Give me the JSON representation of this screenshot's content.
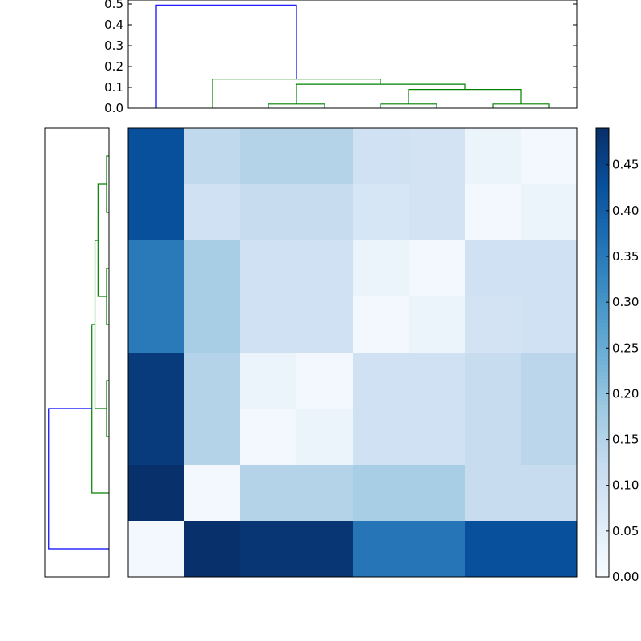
{
  "chart_data": {
    "type": "heatmap",
    "title": "",
    "rows": 8,
    "cols": 8,
    "values": [
      [
        0.43,
        0.13,
        0.15,
        0.15,
        0.1,
        0.09,
        0.03,
        0.01
      ],
      [
        0.43,
        0.1,
        0.12,
        0.12,
        0.08,
        0.09,
        0.01,
        0.03
      ],
      [
        0.35,
        0.17,
        0.1,
        0.1,
        0.03,
        0.01,
        0.1,
        0.1
      ],
      [
        0.35,
        0.17,
        0.1,
        0.1,
        0.01,
        0.03,
        0.09,
        0.1
      ],
      [
        0.47,
        0.15,
        0.03,
        0.01,
        0.1,
        0.1,
        0.12,
        0.14
      ],
      [
        0.47,
        0.15,
        0.01,
        0.03,
        0.1,
        0.1,
        0.12,
        0.14
      ],
      [
        0.49,
        0.01,
        0.15,
        0.15,
        0.17,
        0.17,
        0.12,
        0.12
      ],
      [
        0.01,
        0.49,
        0.48,
        0.48,
        0.36,
        0.36,
        0.43,
        0.43
      ]
    ],
    "colormap": "Blues",
    "color_range": [
      0.0,
      0.49
    ],
    "colorbar": {
      "ticks": [
        0.0,
        0.05,
        0.1,
        0.15,
        0.2,
        0.25,
        0.3,
        0.35,
        0.4,
        0.45
      ],
      "tick_labels": [
        "0.00",
        "0.05",
        "0.10",
        "0.15",
        "0.20",
        "0.25",
        "0.30",
        "0.35",
        "0.40",
        "0.45"
      ]
    },
    "top_dendrogram": {
      "ylim": [
        0.0,
        0.5
      ],
      "yticks": [
        0.0,
        0.1,
        0.2,
        0.3,
        0.4,
        0.5
      ],
      "ytick_labels": [
        "0.0",
        "0.1",
        "0.2",
        "0.3",
        "0.4",
        "0.5"
      ],
      "links": [
        {
          "left": 2.5,
          "right": 3.5,
          "left_h": 0,
          "right_h": 0,
          "height": 0.02,
          "color": "#008000"
        },
        {
          "left": 4.5,
          "right": 5.5,
          "left_h": 0,
          "right_h": 0,
          "height": 0.02,
          "color": "#008000"
        },
        {
          "left": 6.5,
          "right": 7.5,
          "left_h": 0,
          "right_h": 0,
          "height": 0.02,
          "color": "#008000"
        },
        {
          "left": 5.0,
          "right": 7.0,
          "left_h": 0.02,
          "right_h": 0.02,
          "height": 0.09,
          "color": "#008000"
        },
        {
          "left": 3.0,
          "right": 6.0,
          "left_h": 0.02,
          "right_h": 0.09,
          "height": 0.115,
          "color": "#008000"
        },
        {
          "left": 1.5,
          "right": 4.5,
          "left_h": 0,
          "right_h": 0.115,
          "height": 0.14,
          "color": "#008000"
        },
        {
          "left": 0.5,
          "right": 3.0,
          "left_h": 0,
          "right_h": 0.14,
          "height": 0.495,
          "color": "#0000ff"
        }
      ]
    },
    "left_dendrogram": {
      "links": [
        {
          "top": 0.5,
          "bottom": 1.5,
          "top_h": 0,
          "bottom_h": 0,
          "height": 0.02,
          "color": "#008000"
        },
        {
          "top": 2.5,
          "bottom": 3.5,
          "top_h": 0,
          "bottom_h": 0,
          "height": 0.02,
          "color": "#008000"
        },
        {
          "top": 4.5,
          "bottom": 5.5,
          "top_h": 0,
          "bottom_h": 0,
          "height": 0.02,
          "color": "#008000"
        },
        {
          "top": 1.0,
          "bottom": 3.0,
          "top_h": 0.02,
          "bottom_h": 0.02,
          "height": 0.09,
          "color": "#008000"
        },
        {
          "top": 2.0,
          "bottom": 5.0,
          "top_h": 0.09,
          "bottom_h": 0.02,
          "height": 0.115,
          "color": "#008000"
        },
        {
          "top": 3.5,
          "bottom": 6.5,
          "top_h": 0.115,
          "bottom_h": 0,
          "height": 0.14,
          "color": "#008000"
        },
        {
          "top": 5.0,
          "bottom": 7.5,
          "top_h": 0.14,
          "bottom_h": 0,
          "height": 0.495,
          "color": "#0000ff"
        }
      ]
    }
  }
}
